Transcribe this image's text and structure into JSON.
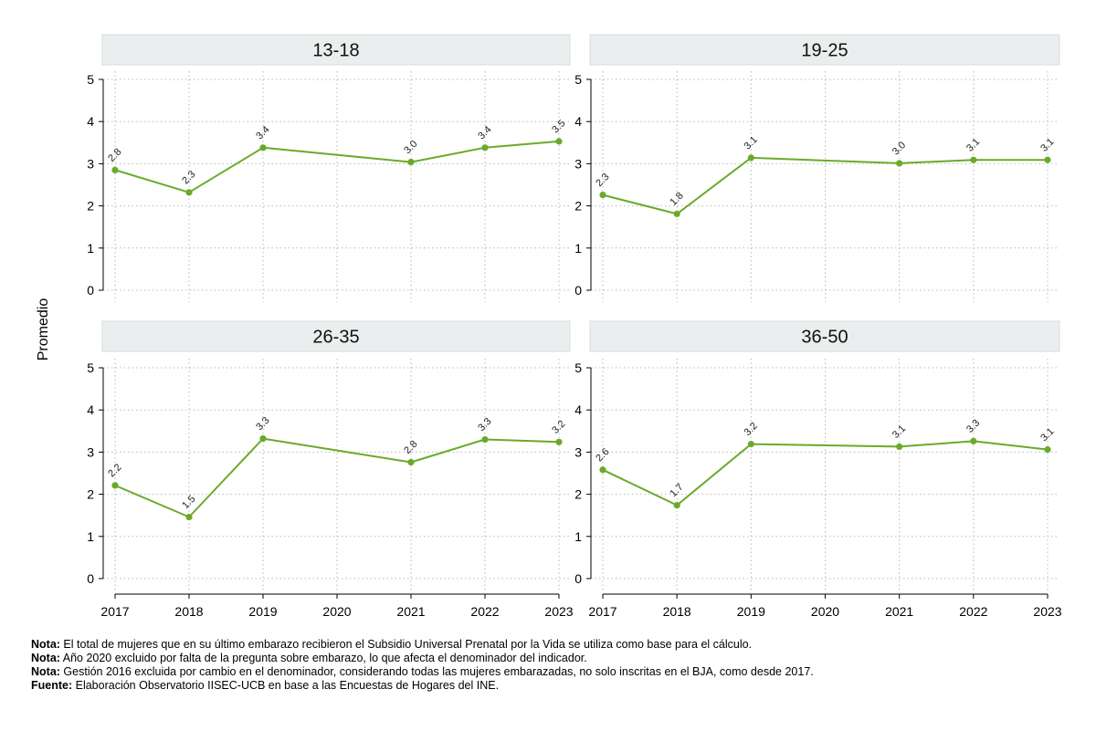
{
  "chart_data": {
    "type": "line",
    "layout": "facet 2x2",
    "ylabel": "Promedio",
    "xlabel": "",
    "x": [
      2017,
      2018,
      2019,
      2020,
      2021,
      2022,
      2023
    ],
    "x_tick_labels": [
      "2017",
      "2018",
      "2019",
      "2020",
      "2021",
      "2022",
      "2023"
    ],
    "ylim": [
      0,
      5
    ],
    "y_ticks": [
      0,
      1,
      2,
      3,
      4,
      5
    ],
    "y_tick_labels": [
      "0",
      "1",
      "2",
      "3",
      "4",
      "5"
    ],
    "grid": true,
    "line_color": "#6aaa2a",
    "strip_color": "#eaeeee",
    "panels": [
      {
        "title": "13-18",
        "points": [
          {
            "x": 2017,
            "y": 2.85,
            "label": "2.8"
          },
          {
            "x": 2018,
            "y": 2.32,
            "label": "2.3"
          },
          {
            "x": 2019,
            "y": 3.38,
            "label": "3.4"
          },
          {
            "x": 2021,
            "y": 3.04,
            "label": "3.0"
          },
          {
            "x": 2022,
            "y": 3.38,
            "label": "3.4"
          },
          {
            "x": 2023,
            "y": 3.53,
            "label": "3.5"
          }
        ]
      },
      {
        "title": "19-25",
        "points": [
          {
            "x": 2017,
            "y": 2.26,
            "label": "2.3"
          },
          {
            "x": 2018,
            "y": 1.81,
            "label": "1.8"
          },
          {
            "x": 2019,
            "y": 3.14,
            "label": "3.1"
          },
          {
            "x": 2021,
            "y": 3.01,
            "label": "3.0"
          },
          {
            "x": 2022,
            "y": 3.09,
            "label": "3.1"
          },
          {
            "x": 2023,
            "y": 3.09,
            "label": "3.1"
          }
        ]
      },
      {
        "title": "26-35",
        "points": [
          {
            "x": 2017,
            "y": 2.21,
            "label": "2.2"
          },
          {
            "x": 2018,
            "y": 1.46,
            "label": "1.5"
          },
          {
            "x": 2019,
            "y": 3.32,
            "label": "3.3"
          },
          {
            "x": 2021,
            "y": 2.76,
            "label": "2.8"
          },
          {
            "x": 2022,
            "y": 3.3,
            "label": "3.3"
          },
          {
            "x": 2023,
            "y": 3.24,
            "label": "3.2"
          }
        ]
      },
      {
        "title": "36-50",
        "points": [
          {
            "x": 2017,
            "y": 2.58,
            "label": "2.6"
          },
          {
            "x": 2018,
            "y": 1.74,
            "label": "1.7"
          },
          {
            "x": 2019,
            "y": 3.19,
            "label": "3.2"
          },
          {
            "x": 2021,
            "y": 3.13,
            "label": "3.1"
          },
          {
            "x": 2022,
            "y": 3.26,
            "label": "3.3"
          },
          {
            "x": 2023,
            "y": 3.06,
            "label": "3.1"
          }
        ]
      }
    ]
  },
  "notes": [
    {
      "label": "Nota:",
      "text": " El total de mujeres que en su último embarazo recibieron el Subsidio Universal Prenatal por la Vida se utiliza como base para el cálculo."
    },
    {
      "label": "Nota:",
      "text": " Año 2020 excluido por falta de la pregunta sobre embarazo, lo que afecta el denominador del indicador."
    },
    {
      "label": "Nota:",
      "text": " Gestión 2016 excluida por cambio en el denominador, considerando todas las mujeres embarazadas, no solo inscritas en el BJA, como desde 2017."
    },
    {
      "label": "Fuente:",
      "text": " Elaboración Observatorio IISEC-UCB en base a las Encuestas de Hogares del INE."
    }
  ]
}
